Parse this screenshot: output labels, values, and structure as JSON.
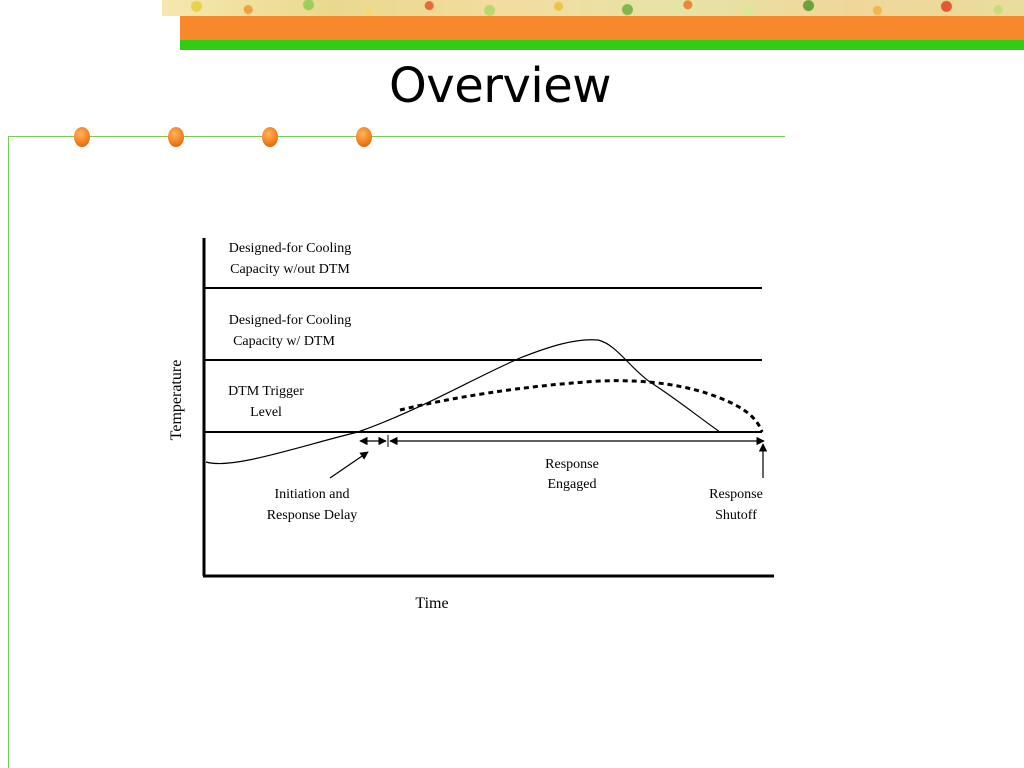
{
  "slide": {
    "title": "Overview"
  },
  "diagram": {
    "y_axis_label": "Temperature",
    "x_axis_label": "Time",
    "levels": [
      {
        "line1": "Designed-for Cooling",
        "line2": "Capacity w/out DTM"
      },
      {
        "line1": "Designed-for Cooling",
        "line2": "Capacity w/ DTM"
      },
      {
        "line1": "DTM Trigger",
        "line2": "Level"
      }
    ],
    "annotations": {
      "initiation": {
        "line1": "Initiation and",
        "line2": "Response Delay"
      },
      "engaged": {
        "line1": "Response",
        "line2": "Engaged"
      },
      "shutoff": {
        "line1": "Response",
        "line2": "Shutoff"
      }
    }
  },
  "colors": {
    "orange_bar": "#f7892c",
    "green_bar": "#33cc14",
    "bullet_dot": "#f07a1c",
    "rule_line": "#77cc55"
  }
}
